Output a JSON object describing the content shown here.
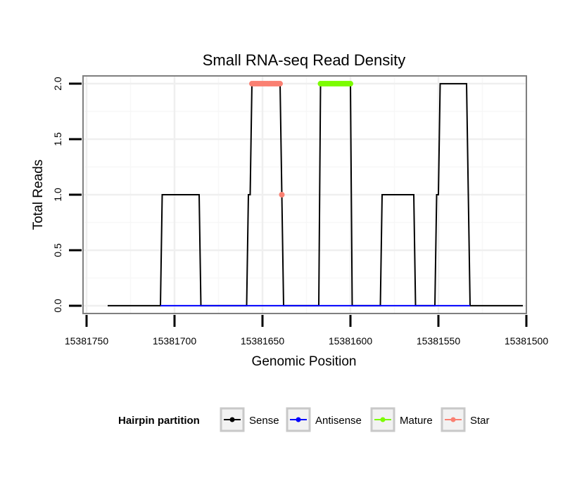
{
  "chart_data": {
    "type": "line",
    "title": "Small RNA-seq Read Density",
    "xlabel": "Genomic Position",
    "ylabel": "Total Reads",
    "x_reversed": true,
    "xlim": [
      15381500,
      15381752
    ],
    "ylim": [
      -0.07,
      2.07
    ],
    "x_ticks": [
      15381750,
      15381700,
      15381650,
      15381600,
      15381550,
      15381500
    ],
    "x_tick_labels": [
      "15381750",
      "15381700",
      "15381650",
      "15381600",
      "15381550",
      "15381500"
    ],
    "y_ticks": [
      0.0,
      0.5,
      1.0,
      1.5,
      2.0
    ],
    "y_tick_labels": [
      "0.0",
      "0.5",
      "1.0",
      "1.5",
      "2.0"
    ],
    "grid": true,
    "legend": {
      "title": "Hairpin partition",
      "position": "bottom",
      "entries": [
        {
          "label": "Sense",
          "color": "#000000"
        },
        {
          "label": "Antisense",
          "color": "#0000ff"
        },
        {
          "label": "Mature",
          "color": "#7cfc00"
        },
        {
          "label": "Star",
          "color": "#fa8072"
        }
      ]
    },
    "series": [
      {
        "name": "Sense",
        "color": "#000000",
        "kind": "line",
        "points": [
          [
            15381738,
            0
          ],
          [
            15381708,
            0
          ],
          [
            15381707,
            1
          ],
          [
            15381686,
            1
          ],
          [
            15381685,
            0
          ],
          [
            15381659,
            0
          ],
          [
            15381658,
            1
          ],
          [
            15381657,
            1
          ],
          [
            15381656,
            2
          ],
          [
            15381640,
            2
          ],
          [
            15381639,
            1
          ],
          [
            15381638,
            0
          ],
          [
            15381618,
            0
          ],
          [
            15381617,
            2
          ],
          [
            15381600,
            2
          ],
          [
            15381599,
            0
          ],
          [
            15381583,
            0
          ],
          [
            15381582,
            1
          ],
          [
            15381564,
            1
          ],
          [
            15381563,
            0
          ],
          [
            15381552,
            0
          ],
          [
            15381551,
            1
          ],
          [
            15381550,
            1
          ],
          [
            15381549,
            2
          ],
          [
            15381534,
            2
          ],
          [
            15381533,
            1
          ],
          [
            15381532,
            0
          ],
          [
            15381502,
            0
          ]
        ]
      },
      {
        "name": "Antisense",
        "color": "#0000ff",
        "kind": "line",
        "points": [
          [
            15381708,
            0
          ],
          [
            15381685,
            0
          ],
          [
            15381659,
            0
          ],
          [
            15381638,
            0
          ],
          [
            15381618,
            0
          ],
          [
            15381599,
            0
          ],
          [
            15381583,
            0
          ],
          [
            15381563,
            0
          ],
          [
            15381552,
            0
          ],
          [
            15381532,
            0
          ]
        ]
      },
      {
        "name": "Mature",
        "color": "#7cfc00",
        "kind": "points",
        "x_start": 15381617,
        "x_end": 15381600,
        "y": 2
      },
      {
        "name": "Star",
        "color": "#fa8072",
        "kind": "points",
        "x_start": 15381656,
        "x_end": 15381640,
        "y": 2,
        "extra_points": [
          [
            15381639,
            1
          ]
        ]
      }
    ]
  }
}
